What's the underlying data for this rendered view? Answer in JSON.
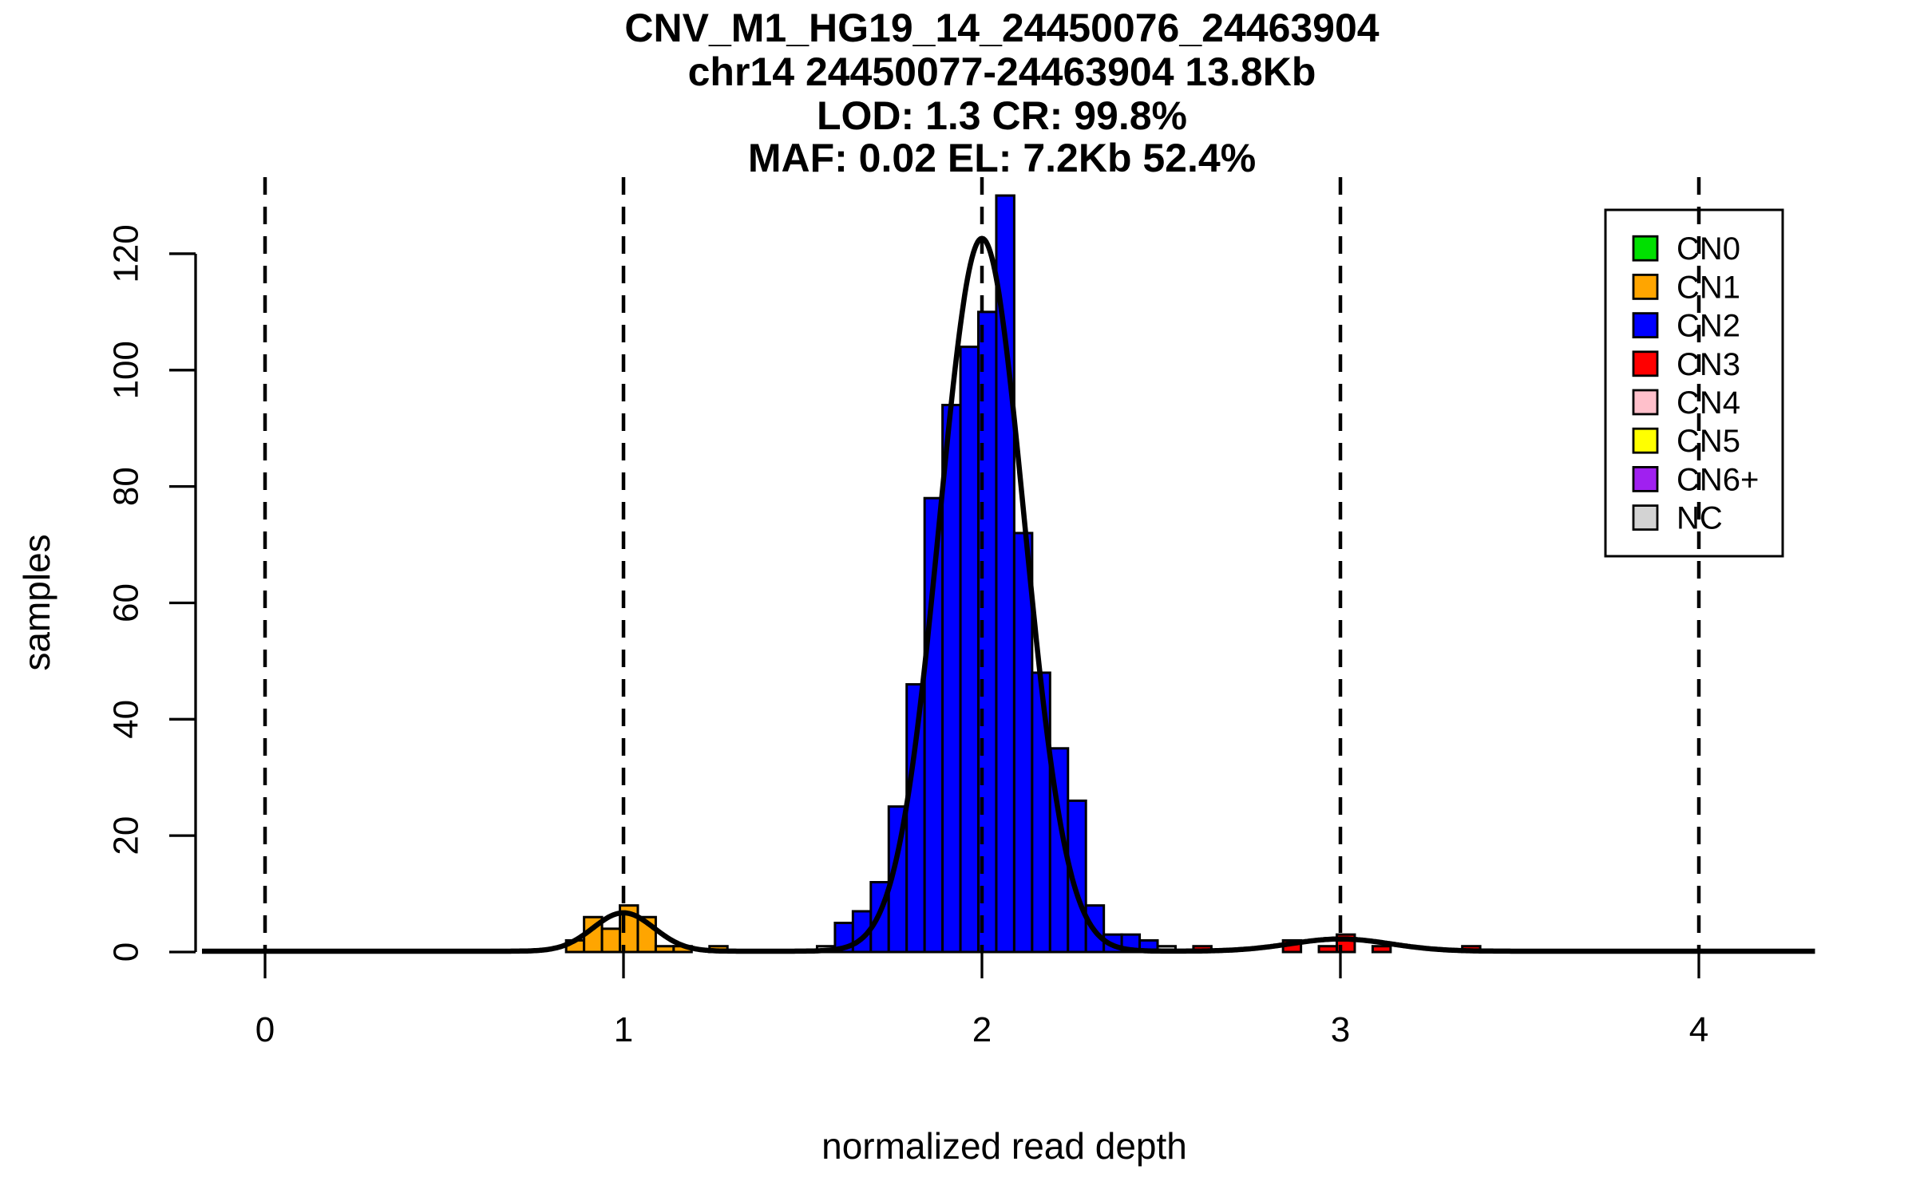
{
  "page": {
    "background": "#FFFFFF"
  },
  "title": {
    "lines": [
      "CNV_M1_HG19_14_24450076_24463904",
      "chr14 24450077-24463904 13.8Kb",
      "LOD: 1.3 CR: 99.8%",
      "MAF: 0.02 EL: 7.2Kb 52.4%"
    ]
  },
  "axes": {
    "x": {
      "label": "normalized read depth",
      "ticks": [
        0,
        1,
        2,
        3,
        4
      ]
    },
    "y": {
      "label": "samples",
      "ticks": [
        0,
        20,
        40,
        60,
        80,
        100,
        120
      ]
    }
  },
  "legend": {
    "items": [
      {
        "label": "CN0",
        "color": "#00E000"
      },
      {
        "label": "CN1",
        "color": "#FFA500"
      },
      {
        "label": "CN2",
        "color": "#0000FF"
      },
      {
        "label": "CN3",
        "color": "#FF0000"
      },
      {
        "label": "CN4",
        "color": "#FFC0CB"
      },
      {
        "label": "CN5",
        "color": "#FFFF00"
      },
      {
        "label": "CN6+",
        "color": "#A020F0"
      },
      {
        "label": "NC",
        "color": "#D3D3D3"
      }
    ]
  },
  "colors": {
    "CN0": "#00E000",
    "CN1": "#FFA500",
    "CN2": "#0000FF",
    "CN3": "#FF0000",
    "CN4": "#FFC0CB",
    "CN5": "#FFFF00",
    "CN6+": "#A020F0",
    "NC": "#D3D3D3",
    "line": "#000000"
  },
  "chart_data": {
    "type": "bar",
    "subtype": "histogram-with-density",
    "title": "CNV_M1_HG19_14_24450076_24463904",
    "subtitle_lines": [
      "chr14 24450077-24463904 13.8Kb",
      "LOD: 1.3 CR: 99.8%",
      "MAF: 0.02 EL: 7.2Kb 52.4%"
    ],
    "xlabel": "normalized read depth",
    "ylabel": "samples",
    "x_ticks": [
      0,
      1,
      2,
      3,
      4
    ],
    "y_ticks": [
      0,
      20,
      40,
      60,
      80,
      100,
      120
    ],
    "xlim": [
      -0.18,
      4.33
    ],
    "ylim": [
      0,
      135
    ],
    "grid": false,
    "legend_position": "top-right",
    "bin_width": 0.05,
    "bars": [
      {
        "x0": 0.84,
        "h": 2,
        "cn": "CN1"
      },
      {
        "x0": 0.89,
        "h": 6,
        "cn": "CN1"
      },
      {
        "x0": 0.94,
        "h": 4,
        "cn": "CN1"
      },
      {
        "x0": 0.99,
        "h": 8,
        "cn": "CN1"
      },
      {
        "x0": 1.04,
        "h": 6,
        "cn": "CN1"
      },
      {
        "x0": 1.09,
        "h": 1,
        "cn": "CN1"
      },
      {
        "x0": 1.14,
        "h": 1,
        "cn": "CN1"
      },
      {
        "x0": 1.24,
        "h": 1,
        "cn": "CN1"
      },
      {
        "x0": 1.54,
        "h": 1,
        "cn": "NC"
      },
      {
        "x0": 1.59,
        "h": 5,
        "cn": "CN2"
      },
      {
        "x0": 1.64,
        "h": 7,
        "cn": "CN2"
      },
      {
        "x0": 1.69,
        "h": 12,
        "cn": "CN2"
      },
      {
        "x0": 1.74,
        "h": 25,
        "cn": "CN2"
      },
      {
        "x0": 1.79,
        "h": 46,
        "cn": "CN2"
      },
      {
        "x0": 1.84,
        "h": 78,
        "cn": "CN2"
      },
      {
        "x0": 1.89,
        "h": 94,
        "cn": "CN2"
      },
      {
        "x0": 1.94,
        "h": 104,
        "cn": "CN2"
      },
      {
        "x0": 1.99,
        "h": 110,
        "cn": "CN2"
      },
      {
        "x0": 2.04,
        "h": 130,
        "cn": "CN2"
      },
      {
        "x0": 2.09,
        "h": 72,
        "cn": "CN2"
      },
      {
        "x0": 2.14,
        "h": 48,
        "cn": "CN2"
      },
      {
        "x0": 2.19,
        "h": 35,
        "cn": "CN2"
      },
      {
        "x0": 2.24,
        "h": 26,
        "cn": "CN2"
      },
      {
        "x0": 2.29,
        "h": 8,
        "cn": "CN2"
      },
      {
        "x0": 2.34,
        "h": 3,
        "cn": "CN2"
      },
      {
        "x0": 2.39,
        "h": 3,
        "cn": "CN2"
      },
      {
        "x0": 2.44,
        "h": 2,
        "cn": "CN2"
      },
      {
        "x0": 2.49,
        "h": 1,
        "cn": "NC"
      },
      {
        "x0": 2.59,
        "h": 1,
        "cn": "CN3"
      },
      {
        "x0": 2.84,
        "h": 2,
        "cn": "CN3"
      },
      {
        "x0": 2.94,
        "h": 1,
        "cn": "CN3"
      },
      {
        "x0": 2.99,
        "h": 3,
        "cn": "CN3"
      },
      {
        "x0": 3.09,
        "h": 1,
        "cn": "CN3"
      },
      {
        "x0": 3.34,
        "h": 1,
        "cn": "CN3"
      }
    ],
    "density_curve": {
      "color": "#000000",
      "components": [
        {
          "mean": 1.0,
          "sd": 0.085,
          "amp": 6.6
        },
        {
          "mean": 2.0,
          "sd": 0.118,
          "amp": 122.5
        },
        {
          "mean": 3.0,
          "sd": 0.14,
          "amp": 2.1
        }
      ]
    },
    "guide_lines_x": [
      0,
      1,
      2,
      3,
      4
    ]
  }
}
